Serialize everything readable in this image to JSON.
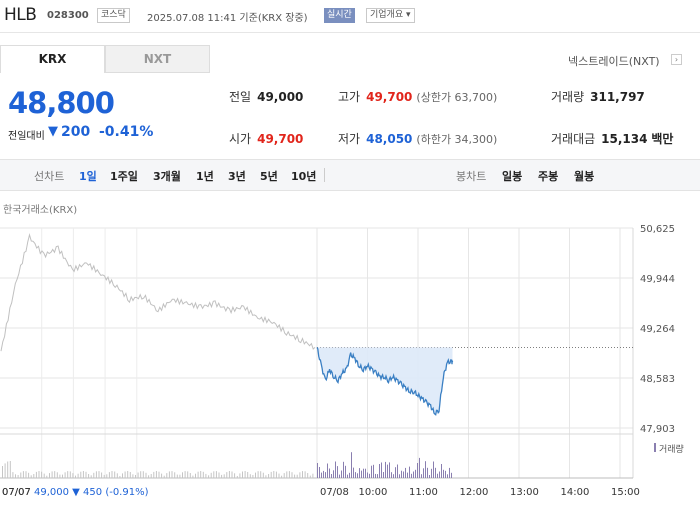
{
  "header": {
    "name": "HLB",
    "code": "028300",
    "market": "코스닥",
    "timestamp": "2025.07.08 11:41 기준(KRX 장중)",
    "realtime": "실시간",
    "company_info": "기업개요",
    "company_info_arrow": "▾"
  },
  "tabs": {
    "krx": "KRX",
    "nxt": "NXT"
  },
  "nxt_link": "넥스트레이드(NXT)",
  "nxt_link_arrow": "›",
  "quote": {
    "price": "48,800",
    "change_label": "전일대비",
    "change_symbol": "▼",
    "change": "200",
    "change_pct": "-0.41%"
  },
  "stats": {
    "prev_label": "전일",
    "prev": "49,000",
    "high_label": "고가",
    "high": "49,700",
    "upper_limit": "(상한가 63,700)",
    "volume_label": "거래량",
    "volume": "311,797",
    "open_label": "시가",
    "open": "49,700",
    "low_label": "저가",
    "low": "48,050",
    "lower_limit": "(하한가 34,300)",
    "amount_label": "거래대금",
    "amount": "15,134",
    "amount_unit": "백만"
  },
  "periods": {
    "line_label": "선차트",
    "line": [
      "1일",
      "1주일",
      "3개월",
      "1년",
      "3년",
      "5년",
      "10년"
    ],
    "line_active": 0,
    "candle_label": "봉차트",
    "candle": [
      "일봉",
      "주봉",
      "월봉"
    ]
  },
  "source_label": "한국거래소(KRX)",
  "colors": {
    "blue": "#1e62d6",
    "red": "#e1251b",
    "line_today": "#3a7fc3",
    "line_prev": "#c0c0c0",
    "fill_today": "#dde9f8"
  },
  "chart_data": {
    "type": "line",
    "y_ticks": [
      "50,625",
      "49,944",
      "49,264",
      "48,583",
      "47,903"
    ],
    "ylim": [
      47903,
      50625
    ],
    "x_tick_labels": [
      "07/08",
      "10:00",
      "11:00",
      "12:00",
      "13:00",
      "14:00",
      "15:00"
    ],
    "x_tick_times": [
      "09:00",
      "10:00",
      "11:00",
      "12:00",
      "13:00",
      "14:00",
      "15:00"
    ],
    "prev_day_end_label": "07/07",
    "reference_price": 49000,
    "volume_legend": "거래량",
    "footer": {
      "date": "07/07",
      "close": "49,000",
      "arrow": "▼",
      "change": "450",
      "pct": "(-0.91%)"
    },
    "series": [
      {
        "x": [
          "07/07",
          "07/07",
          "07/07",
          "07/07",
          "07/07",
          "07/07",
          "07/07",
          "07/07",
          "07/07",
          "07/07",
          "07/07",
          "07/07",
          "07/07",
          "07/07",
          "07/07",
          "07/07",
          "07/07",
          "07/07",
          "07/07",
          "07/07",
          "07/07",
          "07/07",
          "07/07"
        ],
        "values": [
          48950,
          49850,
          50500,
          50250,
          50350,
          50050,
          50150,
          50000,
          49850,
          49650,
          49700,
          49500,
          49650,
          49600,
          49550,
          49600,
          49500,
          49550,
          49400,
          49350,
          49200,
          49100,
          49000
        ]
      },
      {
        "x": [
          "09:00",
          "09:05",
          "09:10",
          "09:15",
          "09:20",
          "09:25",
          "09:30",
          "09:35",
          "09:40",
          "09:45",
          "09:50",
          "09:55",
          "10:00",
          "10:05",
          "10:10",
          "10:15",
          "10:20",
          "10:25",
          "10:30",
          "10:35",
          "10:40",
          "10:45",
          "10:50",
          "10:55",
          "11:00",
          "11:05",
          "11:10",
          "11:15",
          "11:20",
          "11:25",
          "11:30",
          "11:35",
          "11:40",
          "11:41"
        ],
        "values": [
          49000,
          48750,
          48550,
          48700,
          48600,
          48550,
          48650,
          48700,
          48900,
          48850,
          48750,
          48700,
          48750,
          48700,
          48650,
          48600,
          48600,
          48550,
          48600,
          48550,
          48500,
          48450,
          48400,
          48400,
          48350,
          48300,
          48250,
          48200,
          48100,
          48150,
          48600,
          48800,
          48800,
          48800
        ]
      }
    ]
  }
}
